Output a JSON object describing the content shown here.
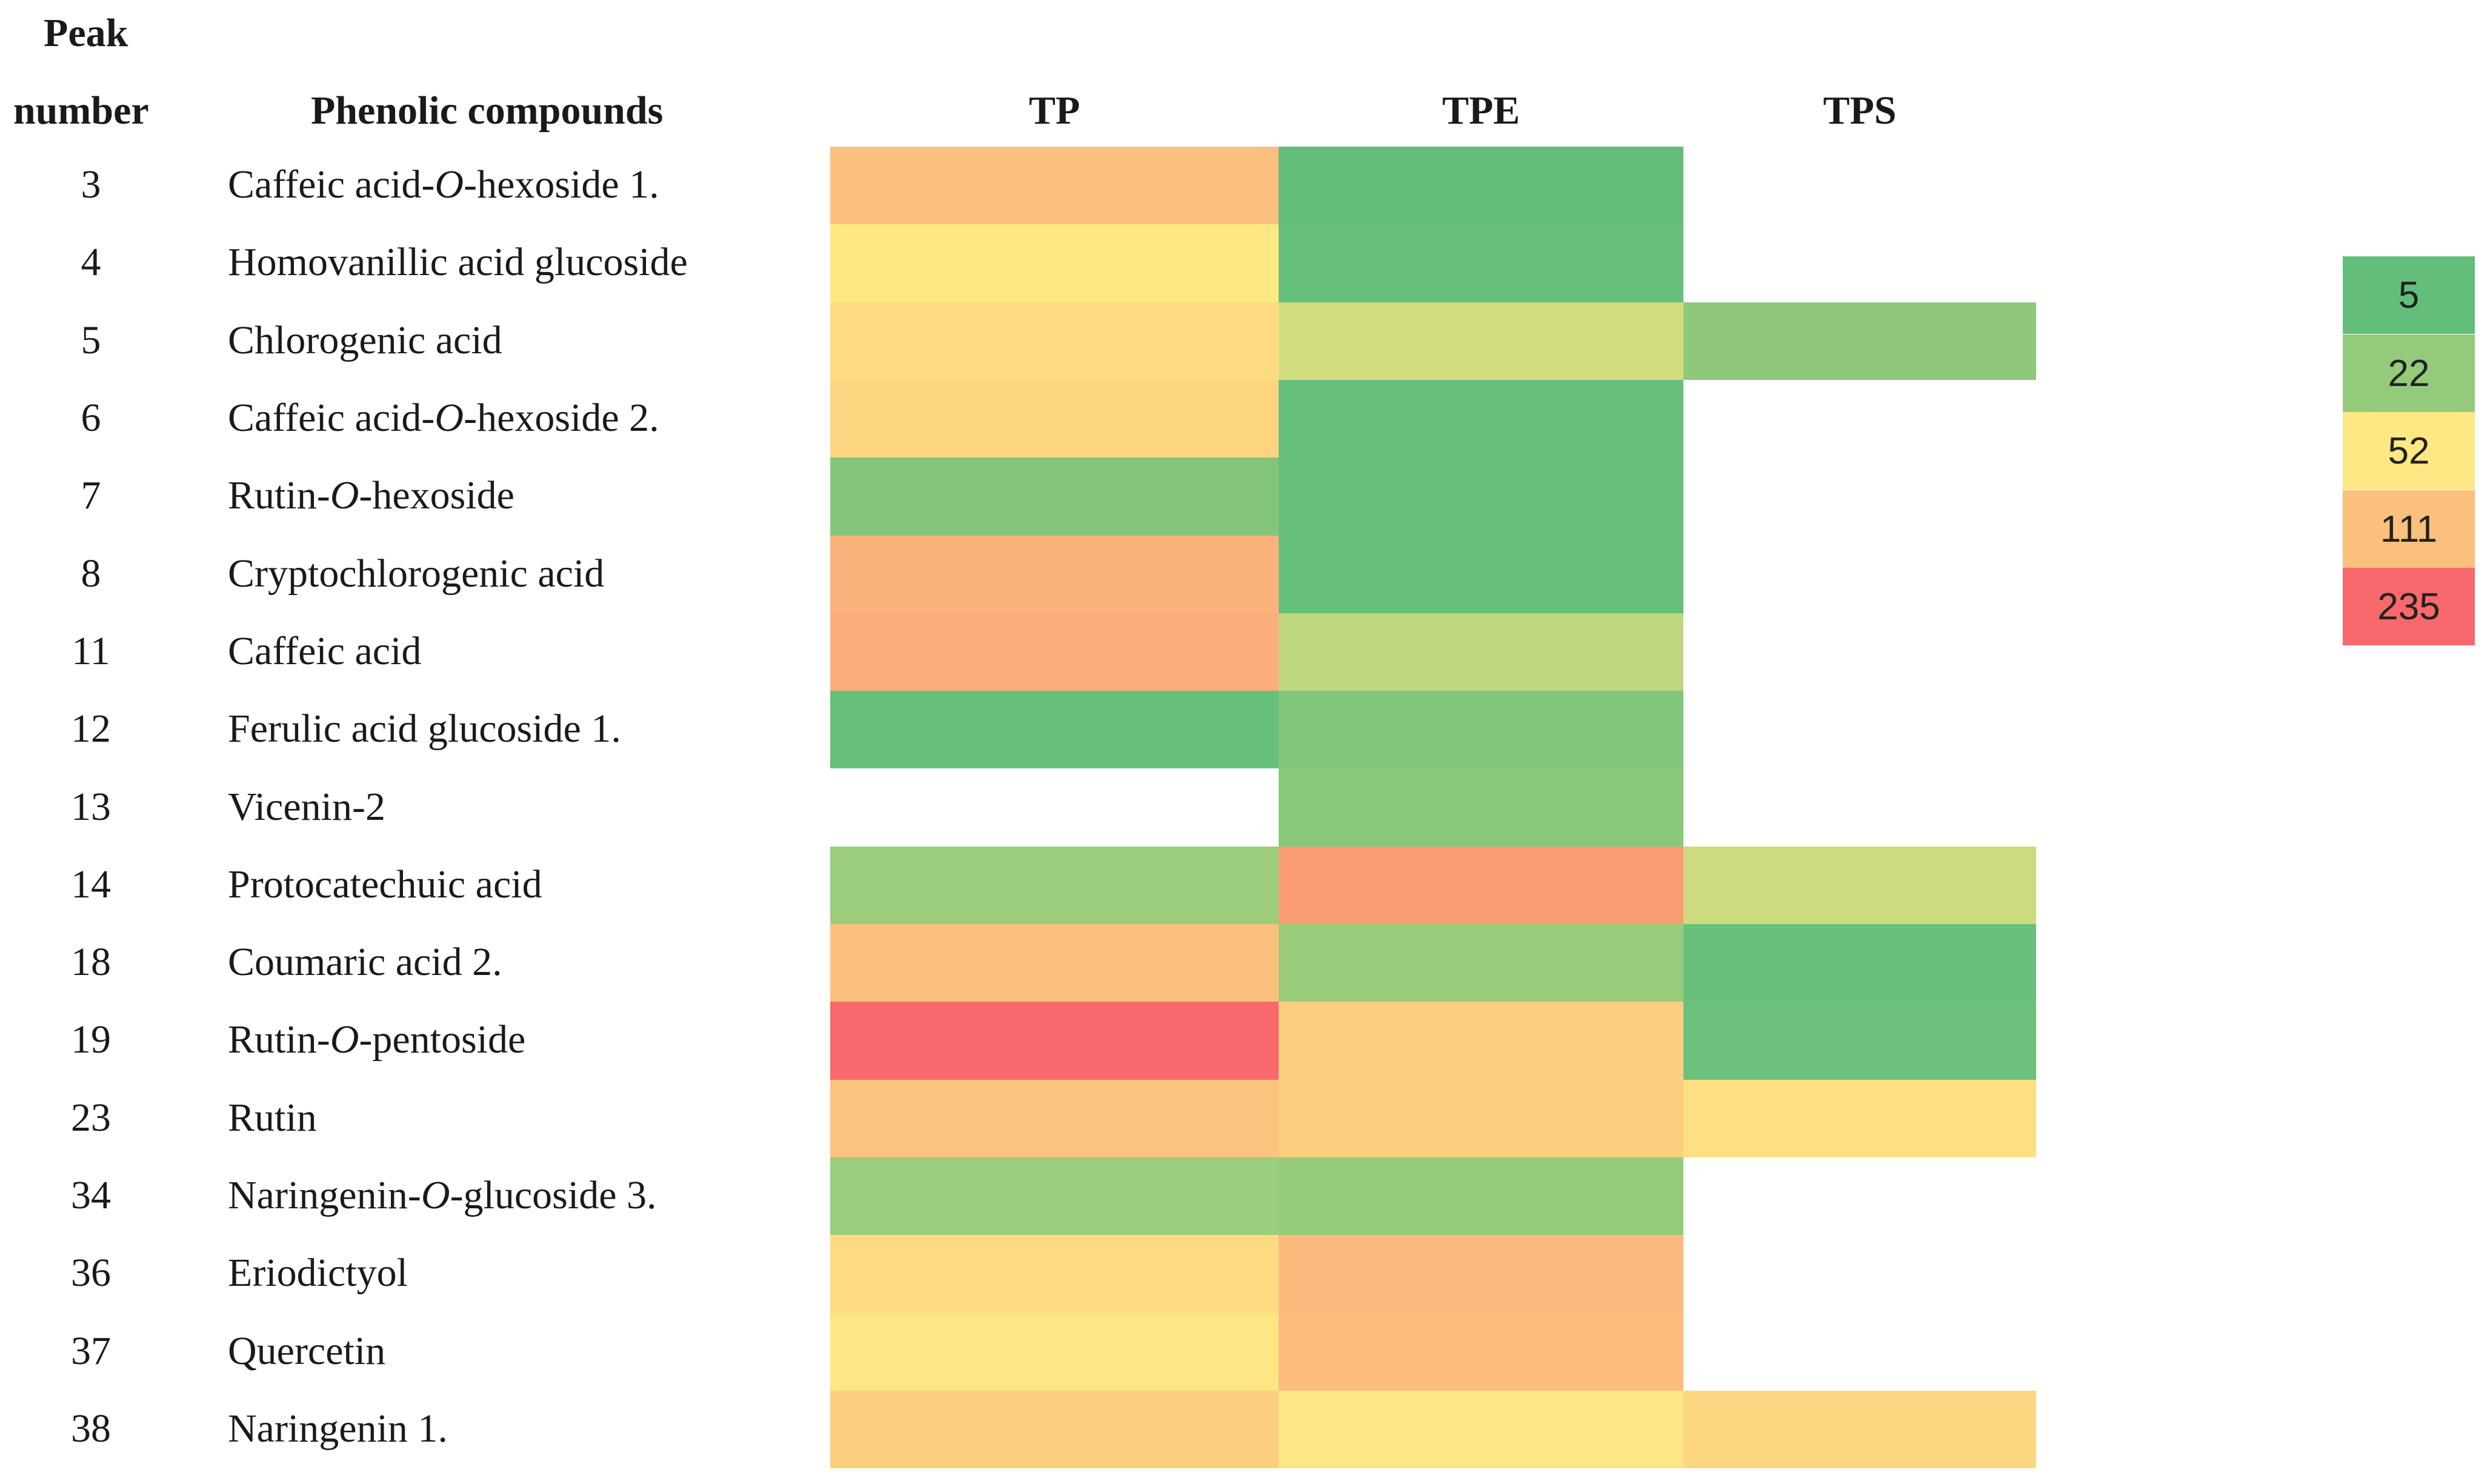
{
  "chart_data": {
    "type": "heatmap",
    "title": "",
    "header": {
      "peak_line1": "Peak",
      "peak_line2": "number",
      "compound": "Phenolic compounds"
    },
    "columns": [
      "TP",
      "TPE",
      "TPS"
    ],
    "rows": [
      {
        "peak": "3",
        "pre": "Caffeic acid-",
        "it": "O",
        "post": "-hexoside 1."
      },
      {
        "peak": "4",
        "pre": "Homovanillic acid glucoside",
        "it": "",
        "post": ""
      },
      {
        "peak": "5",
        "pre": "Chlorogenic acid",
        "it": "",
        "post": ""
      },
      {
        "peak": "6",
        "pre": "Caffeic acid-",
        "it": "O",
        "post": "-hexoside 2."
      },
      {
        "peak": "7",
        "pre": "Rutin-",
        "it": "O",
        "post": "-hexoside"
      },
      {
        "peak": "8",
        "pre": "Cryptochlorogenic acid",
        "it": "",
        "post": ""
      },
      {
        "peak": "11",
        "pre": "Caffeic acid",
        "it": "",
        "post": ""
      },
      {
        "peak": "12",
        "pre": "Ferulic acid glucoside 1.",
        "it": "",
        "post": ""
      },
      {
        "peak": "13",
        "pre": "Vicenin-2",
        "it": "",
        "post": ""
      },
      {
        "peak": "14",
        "pre": "Protocatechuic acid",
        "it": "",
        "post": ""
      },
      {
        "peak": "18",
        "pre": "Coumaric acid 2.",
        "it": "",
        "post": ""
      },
      {
        "peak": "19",
        "pre": "Rutin-",
        "it": "O",
        "post": "-pentoside"
      },
      {
        "peak": "23",
        "pre": "Rutin",
        "it": "",
        "post": ""
      },
      {
        "peak": "34",
        "pre": "Naringenin-",
        "it": "O",
        "post": "-glucoside 3."
      },
      {
        "peak": "36",
        "pre": "Eriodictyol",
        "it": "",
        "post": ""
      },
      {
        "peak": "37",
        "pre": "Quercetin",
        "it": "",
        "post": ""
      },
      {
        "peak": "38",
        "pre": "Naringenin 1.",
        "it": "",
        "post": ""
      }
    ],
    "values": [
      [
        110,
        5,
        null
      ],
      [
        52,
        6,
        null
      ],
      [
        70,
        40,
        20
      ],
      [
        80,
        6,
        null
      ],
      [
        16,
        6,
        null
      ],
      [
        130,
        6,
        null
      ],
      [
        135,
        34,
        null
      ],
      [
        6,
        15,
        null
      ],
      [
        null,
        18,
        null
      ],
      [
        24,
        160,
        38
      ],
      [
        110,
        23,
        7
      ],
      [
        235,
        90,
        8
      ],
      [
        105,
        90,
        65
      ],
      [
        24,
        22,
        null
      ],
      [
        72,
        120,
        null
      ],
      [
        55,
        115,
        null
      ],
      [
        90,
        55,
        78
      ]
    ],
    "color_scale": {
      "stops": [
        {
          "value": 5,
          "color": "#63be7b"
        },
        {
          "value": 22,
          "color": "#94cb7b"
        },
        {
          "value": 52,
          "color": "#ffe884"
        },
        {
          "value": 111,
          "color": "#fbbf7e"
        },
        {
          "value": 235,
          "color": "#f8696b"
        }
      ],
      "legend_labels": [
        "5",
        "22",
        "52",
        "111",
        "235"
      ]
    }
  }
}
